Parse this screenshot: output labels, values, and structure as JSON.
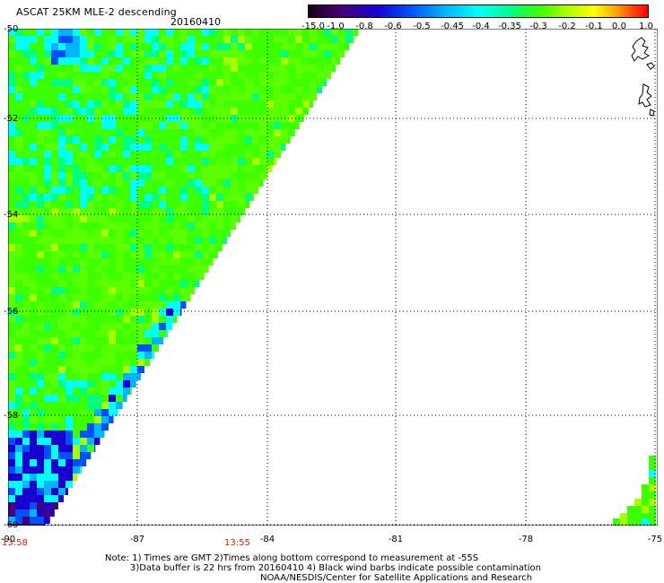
{
  "title": "ASCAT 25KM MLE-2 descending",
  "date": "20160410",
  "colorbar": {
    "ticks": [
      "-15.0",
      "-1.0",
      "-0.8",
      "-0.6",
      "-0.5",
      "-0.45",
      "-0.4",
      "-0.35",
      "-0.3",
      "-0.2",
      "-0.1",
      "0.0",
      "1.0"
    ]
  },
  "map": {
    "lat_labels": [
      "-50",
      "-52",
      "-54",
      "-56",
      "-58",
      "-60"
    ],
    "lon_labels": [
      "-90",
      "-87",
      "-84",
      "-81",
      "-78",
      "-75"
    ],
    "time_labels": [
      "13:58",
      "13:55"
    ],
    "colors": {
      "green": "#3cff00",
      "lime": "#5aff00",
      "yellowgreen": "#a8ff00",
      "teal": "#00ff80",
      "cyan": "#00ffff",
      "skyblue": "#00b4ff",
      "blue": "#0050ff",
      "deepblue": "#1a00d0",
      "purple": "#4a007a",
      "background": "#ffffff",
      "grid": "#000000"
    }
  },
  "notes": {
    "line1": "Note: 1) Times are GMT 2)Times along bottom correspond to measurement at -55S",
    "line2": "3)Data buffer is 22 hrs from 20160410 4) Black wind barbs indicate possible contamination",
    "line3": "NOAA/NESDIS/Center for Satellite Applications and Research"
  }
}
